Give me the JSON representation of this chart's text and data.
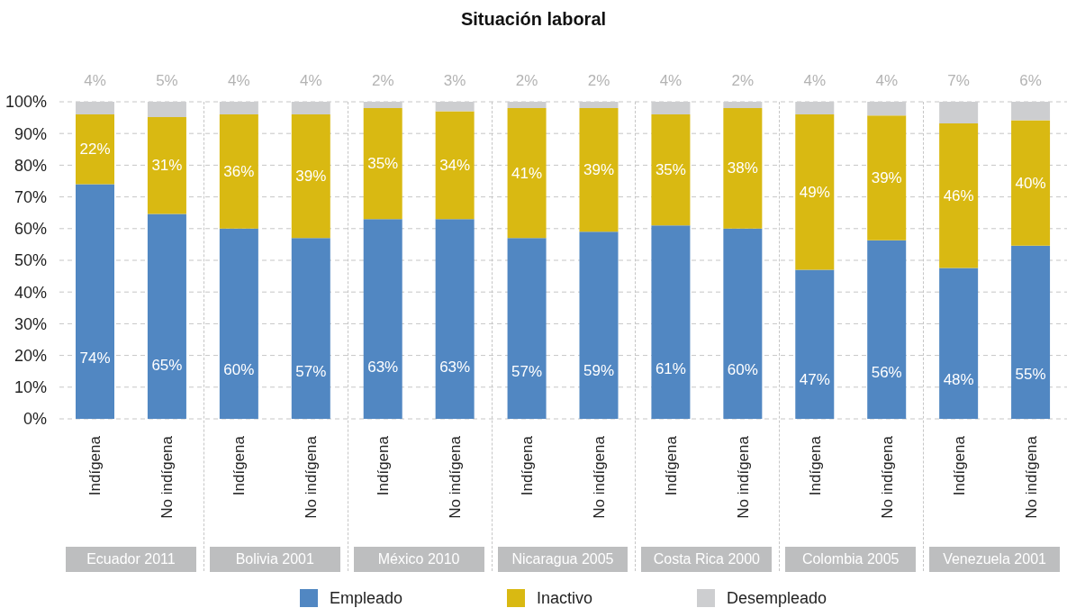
{
  "chart_data": {
    "type": "bar",
    "title": "Situación laboral",
    "categories": [
      "Indígena",
      "No indígena",
      "Indígena",
      "No indígena",
      "Indígena",
      "No indígena",
      "Indígena",
      "No indígena",
      "Indígena",
      "No indígena",
      "Indígena",
      "No indígena",
      "Indígena",
      "No indígena"
    ],
    "stacked": true,
    "series": [
      {
        "name": "Empleado",
        "color": "#5187c2",
        "values": [
          74,
          64.6,
          60,
          57,
          63,
          63,
          57,
          59,
          61,
          60,
          47,
          56.3,
          47.6,
          54.6
        ],
        "value_labels": [
          "74%",
          "65%",
          "60%",
          "57%",
          "63%",
          "63%",
          "57%",
          "59%",
          "61%",
          "60%",
          "47%",
          "56%",
          "48%",
          "55%"
        ]
      },
      {
        "name": "Inactivo",
        "color": "#d9b912",
        "values": [
          22,
          30.6,
          36,
          39,
          35,
          34,
          41,
          39,
          35,
          38,
          49,
          39.4,
          45.6,
          39.6
        ],
        "value_labels": [
          "22%",
          "31%",
          "36%",
          "39%",
          "35%",
          "34%",
          "41%",
          "39%",
          "35%",
          "38%",
          "49%",
          "39%",
          "46%",
          "40%"
        ]
      },
      {
        "name": "Desempleado",
        "color": "#cdced0",
        "values": [
          4,
          4.8,
          4,
          4,
          2,
          3,
          2,
          2,
          4,
          2,
          4,
          4.3,
          6.8,
          5.8
        ],
        "value_labels": [
          "4%",
          "5%",
          "4%",
          "4%",
          "2%",
          "3%",
          "2%",
          "2%",
          "4%",
          "2%",
          "4%",
          "4%",
          "7%",
          "6%"
        ]
      }
    ],
    "ylim": [
      0,
      100
    ],
    "yticks": [
      {
        "value": 0,
        "label": "0%"
      },
      {
        "value": 10,
        "label": "10%"
      },
      {
        "value": 20,
        "label": "20%"
      },
      {
        "value": 30,
        "label": "30%"
      },
      {
        "value": 40,
        "label": "40%"
      },
      {
        "value": 50,
        "label": "50%"
      },
      {
        "value": 60,
        "label": "60%"
      },
      {
        "value": 70,
        "label": "70%"
      },
      {
        "value": 80,
        "label": "80%"
      },
      {
        "value": 90,
        "label": "90%"
      },
      {
        "value": 100,
        "label": "100%"
      }
    ],
    "grid": "y",
    "legend": "bottom",
    "annotations": [
      "Ecuador 2011",
      "Bolivia 2001",
      "México 2010",
      "Nicaragua 2005",
      "Costa Rica 2000",
      "Colombia 2005",
      "Venezuela 2001"
    ]
  }
}
